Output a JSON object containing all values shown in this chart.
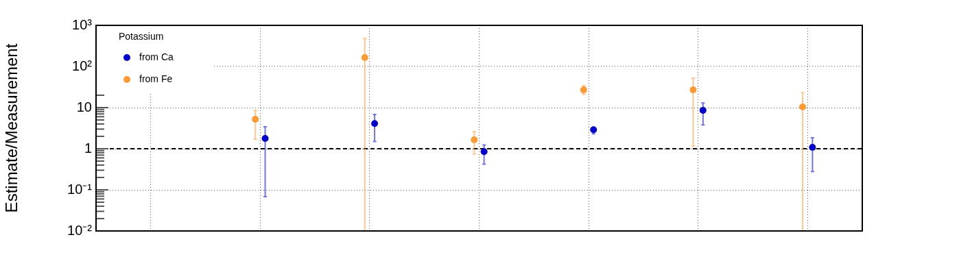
{
  "chart_data": {
    "type": "scatter",
    "ylabel": "Estimate/Measurement",
    "legend_title": "Potassium",
    "legend": "top left",
    "marker": "circle",
    "grid": true,
    "log": true,
    "tick_labels": "y",
    "categories": [
      null,
      null,
      null,
      null,
      null,
      null,
      null
    ],
    "ylim": [
      0.01,
      1000
    ],
    "yticks": [
      {
        "value": 0.01,
        "label": "10⁻²"
      },
      {
        "value": 0.02,
        "label": null
      },
      {
        "value": 0.03,
        "label": null
      },
      {
        "value": 0.04,
        "label": null
      },
      {
        "value": 0.05,
        "label": null
      },
      {
        "value": 0.06,
        "label": null
      },
      {
        "value": 0.07,
        "label": null
      },
      {
        "value": 0.08,
        "label": null
      },
      {
        "value": 0.09,
        "label": null
      },
      {
        "value": 0.1,
        "label": "10⁻¹"
      },
      {
        "value": 0.2,
        "label": null
      },
      {
        "value": 0.3,
        "label": null
      },
      {
        "value": 0.4,
        "label": null
      },
      {
        "value": 0.5,
        "label": null
      },
      {
        "value": 0.6,
        "label": null
      },
      {
        "value": 0.7,
        "label": null
      },
      {
        "value": 0.8,
        "label": null
      },
      {
        "value": 0.9,
        "label": null
      },
      1,
      {
        "value": 2,
        "label": null
      },
      {
        "value": 3,
        "label": null
      },
      {
        "value": 4,
        "label": null
      },
      {
        "value": 5,
        "label": null
      },
      {
        "value": 6,
        "label": null
      },
      {
        "value": 7,
        "label": null
      },
      {
        "value": 8,
        "label": null
      },
      {
        "value": 9,
        "label": null
      },
      10,
      {
        "value": 20,
        "label": null
      },
      {
        "value": 30,
        "label": null
      },
      {
        "value": 40,
        "label": null
      },
      {
        "value": 50,
        "label": null
      },
      {
        "value": 60,
        "label": null
      },
      {
        "value": 70,
        "label": null
      },
      {
        "value": 80,
        "label": null
      },
      {
        "value": 90,
        "label": null
      },
      {
        "value": 100,
        "label": "10²"
      },
      {
        "value": 200,
        "label": null
      },
      {
        "value": 300,
        "label": null
      },
      {
        "value": 400,
        "label": null
      },
      {
        "value": 500,
        "label": null
      },
      {
        "value": 600,
        "label": null
      },
      {
        "value": 700,
        "label": null
      },
      {
        "value": 800,
        "label": null
      },
      {
        "value": 900,
        "label": null
      },
      {
        "value": 1000,
        "label": "10³"
      }
    ],
    "ref_lines": [
      {
        "axis": "y",
        "value": 1,
        "color": "#000000",
        "line_style": "dashed"
      }
    ],
    "series": [
      {
        "name": "from Ca",
        "color": "#0000cc",
        "values": [
          null,
          1.78,
          4.1,
          0.85,
          2.9,
          8.6,
          1.08
        ],
        "errors": [
          null,
          [
            0.068,
            3.4
          ],
          [
            1.5,
            6.8
          ],
          [
            0.42,
            1.24
          ],
          [
            2.3,
            3.05
          ],
          [
            3.8,
            13
          ],
          [
            0.28,
            1.85
          ]
        ]
      },
      {
        "name": "from Fe",
        "color": "#ff9933",
        "values": [
          null,
          5.2,
          165,
          1.65,
          27,
          27,
          10.4
        ],
        "errors": [
          null,
          [
            1.7,
            8.6
          ],
          [
            0.01,
            480
          ],
          [
            0.74,
            2.6
          ],
          [
            21,
            34
          ],
          [
            1.17,
            52
          ],
          [
            0.01,
            23
          ]
        ]
      }
    ]
  }
}
